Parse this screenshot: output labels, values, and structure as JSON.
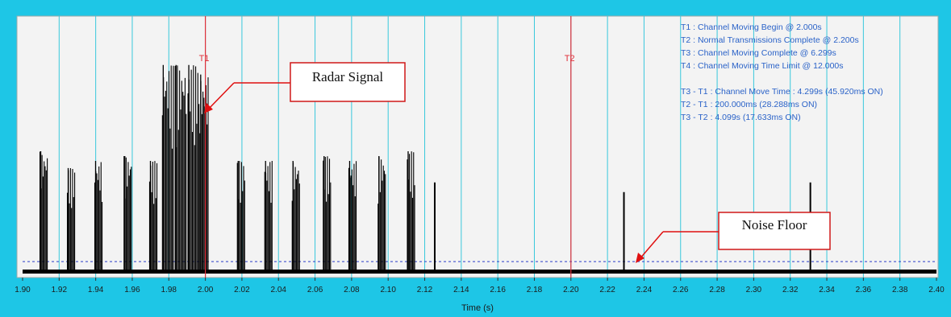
{
  "colors": {
    "frame": "#1ec6e6",
    "plot_bg": "#f3f3f3",
    "gridline": "#38c8dc",
    "signal": "#000000",
    "marker_line": "#e0303a",
    "noise_threshold": "#2a3cc8",
    "info_text": "#2a62c8",
    "callout_border": "#d01818",
    "arrow": "#e01010"
  },
  "info_panel": {
    "lines": [
      "T1 : Channel Moving Begin @ 2.000s",
      "T2 : Normal Transmissions Complete @ 2.200s",
      "T3 : Channel Moving Complete @ 6.299s",
      "T4 : Channel Moving Time Limit @ 12.000s",
      "",
      "T3 - T1 : Channel Move Time : 4.299s (45.920ms ON)",
      "T2 - T1 : 200.000ms (28.288ms ON)",
      "T3 - T2 : 4.099s (17.633ms ON)"
    ]
  },
  "callouts": {
    "radar_signal": "Radar Signal",
    "noise_floor": "Noise Floor"
  },
  "chart_data": {
    "type": "line",
    "title": "",
    "xlabel": "Time (s)",
    "ylabel": "",
    "xlim": [
      1.9,
      2.4
    ],
    "ylim": [
      0,
      100
    ],
    "grid": true,
    "x_ticks": [
      "1.90",
      "1.92",
      "1.94",
      "1.96",
      "1.98",
      "2.00",
      "2.02",
      "2.04",
      "2.06",
      "2.08",
      "2.10",
      "2.12",
      "2.14",
      "2.16",
      "2.18",
      "2.20",
      "2.22",
      "2.24",
      "2.26",
      "2.28",
      "2.30",
      "2.32",
      "2.34",
      "2.36",
      "2.38",
      "2.40"
    ],
    "noise_floor_level": 2,
    "threshold_level": 6,
    "markers": [
      {
        "name": "T1",
        "x": 2.0
      },
      {
        "name": "T2",
        "x": 2.2
      }
    ],
    "bursts": [
      {
        "start": 1.9095,
        "end": 1.9135,
        "peak": 52
      },
      {
        "start": 1.9245,
        "end": 1.9285,
        "peak": 45
      },
      {
        "start": 1.9395,
        "end": 1.9435,
        "peak": 48
      },
      {
        "start": 1.9555,
        "end": 1.9595,
        "peak": 50
      },
      {
        "start": 1.9695,
        "end": 1.9735,
        "peak": 48
      },
      {
        "start": 1.9765,
        "end": 1.9825,
        "peak": 88
      },
      {
        "start": 1.9835,
        "end": 1.9895,
        "peak": 88
      },
      {
        "start": 1.9905,
        "end": 1.9965,
        "peak": 88
      },
      {
        "start": 1.997,
        "end": 2.0015,
        "peak": 84
      },
      {
        "start": 2.0175,
        "end": 2.0215,
        "peak": 48
      },
      {
        "start": 2.0325,
        "end": 2.0365,
        "peak": 48
      },
      {
        "start": 2.0475,
        "end": 2.0515,
        "peak": 48
      },
      {
        "start": 2.0645,
        "end": 2.0685,
        "peak": 50
      },
      {
        "start": 2.0785,
        "end": 2.0825,
        "peak": 48
      },
      {
        "start": 2.0945,
        "end": 2.0985,
        "peak": 50
      },
      {
        "start": 2.1105,
        "end": 2.1145,
        "peak": 52
      }
    ],
    "spikes": [
      {
        "x": 2.1255,
        "peak": 39
      },
      {
        "x": 2.229,
        "peak": 35
      },
      {
        "x": 2.331,
        "peak": 39
      }
    ]
  }
}
